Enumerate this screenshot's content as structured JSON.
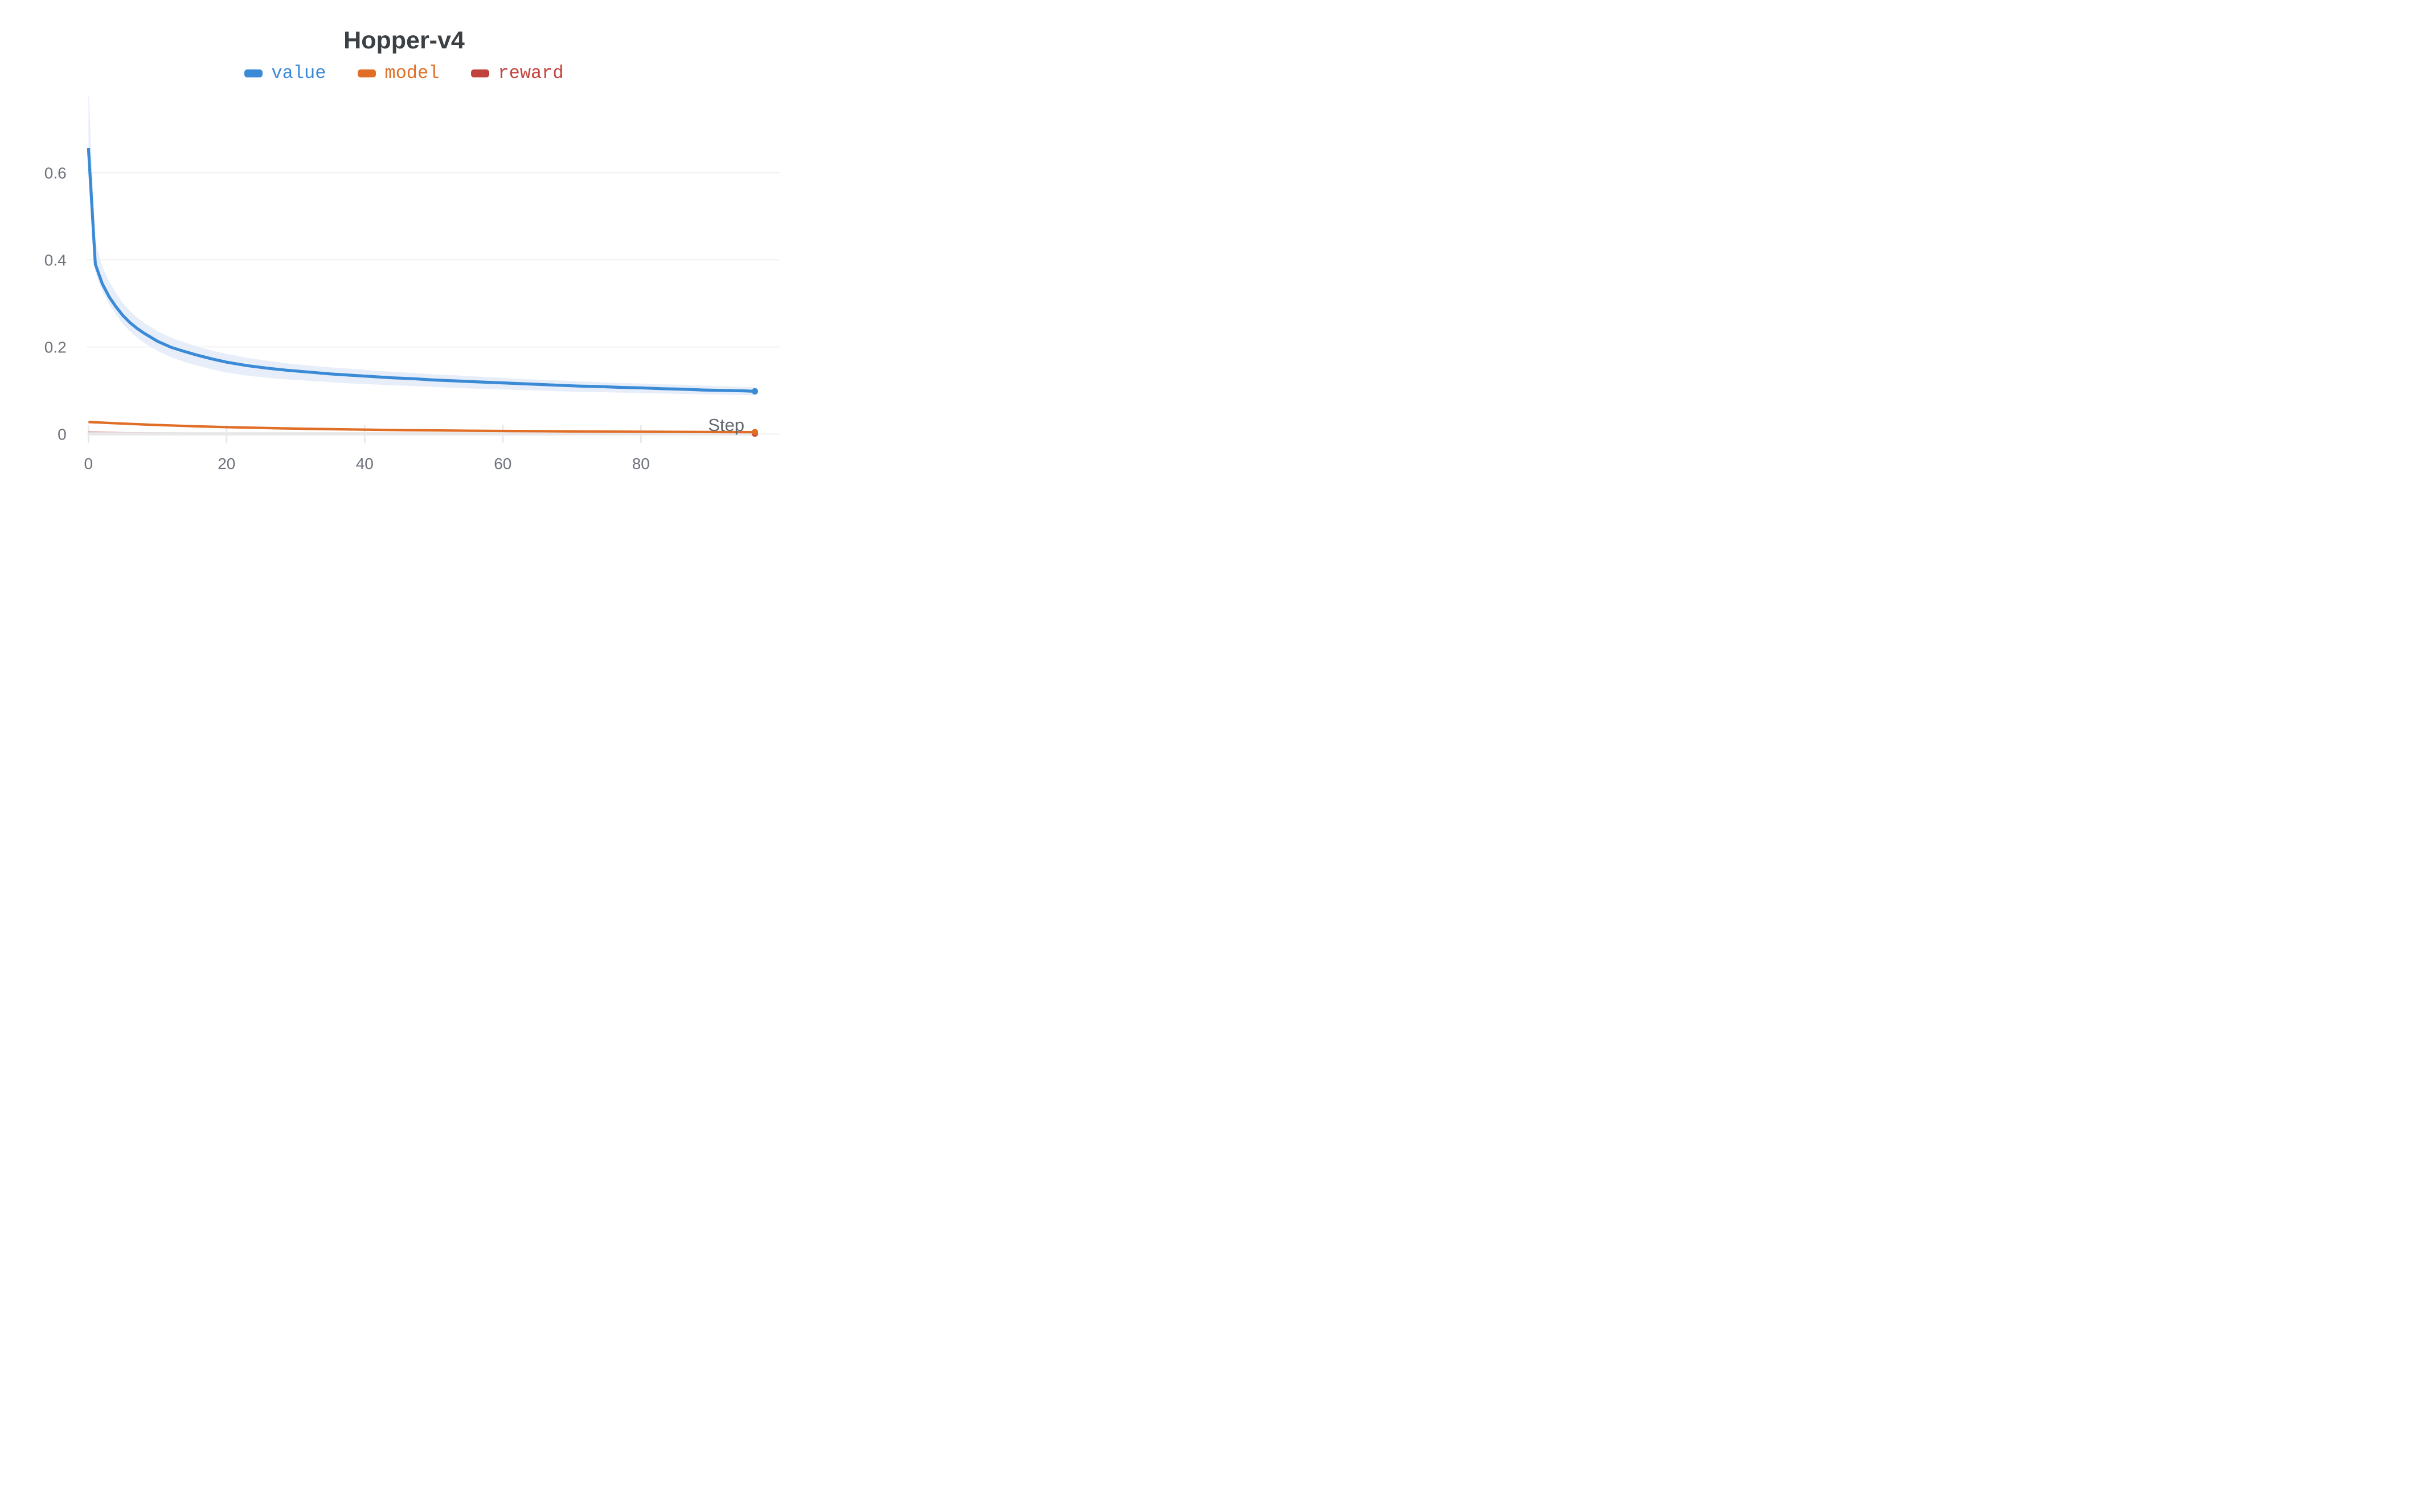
{
  "page": {
    "title": "Hopper-v4"
  },
  "chart_data": {
    "type": "line",
    "title": "Hopper-v4",
    "xlabel": "Step",
    "ylabel": "",
    "x_ticks": [
      0,
      20,
      40,
      60,
      80
    ],
    "y_ticks": [
      0,
      0.2,
      0.4,
      0.6
    ],
    "xlim": [
      -0.3,
      100
    ],
    "ylim": [
      0,
      0.777
    ],
    "grid": "horizontal-only",
    "legend_position": "top-center",
    "background": "#ffffff",
    "grid_color": "#e7e7e9",
    "tick_mark_color": "#e8e8ea",
    "tick_label_color": "#6d717a",
    "title_color": "#3b4045",
    "series": [
      {
        "name": "value",
        "color": "#3a8ad6",
        "band_color": "#e7eefa",
        "has_end_dot": true,
        "x": [
          0,
          1,
          2,
          3,
          4,
          5,
          6,
          7,
          8,
          10,
          12,
          14,
          16,
          18,
          20,
          23,
          26,
          29,
          32,
          35,
          38,
          41,
          44,
          47,
          50,
          53,
          56,
          59,
          62,
          65,
          68,
          71,
          74,
          77,
          80,
          83,
          86,
          89,
          92,
          95,
          96.5
        ],
        "y": [
          0.657,
          0.39,
          0.345,
          0.315,
          0.292,
          0.272,
          0.256,
          0.243,
          0.232,
          0.213,
          0.199,
          0.189,
          0.18,
          0.172,
          0.165,
          0.157,
          0.151,
          0.146,
          0.142,
          0.138,
          0.135,
          0.132,
          0.129,
          0.127,
          0.124,
          0.122,
          0.12,
          0.118,
          0.116,
          0.114,
          0.112,
          0.11,
          0.109,
          0.107,
          0.106,
          0.104,
          0.103,
          0.101,
          0.1,
          0.099,
          0.098
        ],
        "band_upper": [
          0.8,
          0.44,
          0.385,
          0.35,
          0.324,
          0.3,
          0.283,
          0.268,
          0.256,
          0.236,
          0.221,
          0.21,
          0.2,
          0.191,
          0.184,
          0.175,
          0.168,
          0.162,
          0.157,
          0.153,
          0.15,
          0.146,
          0.143,
          0.14,
          0.137,
          0.135,
          0.132,
          0.13,
          0.127,
          0.125,
          0.123,
          0.121,
          0.119,
          0.117,
          0.116,
          0.114,
          0.113,
          0.111,
          0.11,
          0.108,
          0.107
        ],
        "band_lower": [
          0.61,
          0.372,
          0.328,
          0.298,
          0.274,
          0.252,
          0.236,
          0.222,
          0.21,
          0.191,
          0.176,
          0.165,
          0.156,
          0.148,
          0.141,
          0.134,
          0.129,
          0.125,
          0.122,
          0.119,
          0.116,
          0.114,
          0.112,
          0.11,
          0.108,
          0.106,
          0.104,
          0.103,
          0.101,
          0.1,
          0.098,
          0.097,
          0.096,
          0.095,
          0.094,
          0.093,
          0.092,
          0.091,
          0.09,
          0.089,
          0.0885
        ]
      },
      {
        "name": "model",
        "color": "#e06e26",
        "has_end_dot": true,
        "x": [
          0,
          3,
          6,
          9,
          12,
          15,
          18,
          21,
          24,
          27,
          30,
          34,
          38,
          42,
          46,
          50,
          55,
          60,
          65,
          70,
          75,
          80,
          85,
          90,
          96.5
        ],
        "y": [
          0.0275,
          0.0252,
          0.0231,
          0.0212,
          0.0195,
          0.0179,
          0.0165,
          0.0153,
          0.0142,
          0.0132,
          0.0123,
          0.0112,
          0.0103,
          0.0095,
          0.0088,
          0.0082,
          0.0075,
          0.0069,
          0.0064,
          0.0059,
          0.0055,
          0.0051,
          0.0048,
          0.0045,
          0.0042
        ]
      },
      {
        "name": "reward",
        "color": "#c2423c",
        "band_color": "#e8e8ea",
        "band_over_line": true,
        "has_end_dot": true,
        "x": [
          0,
          5,
          10,
          20,
          30,
          40,
          50,
          60,
          70,
          80,
          90,
          96.5
        ],
        "y": [
          0.0042,
          0.0033,
          0.0027,
          0.0021,
          0.0017,
          0.0014,
          0.0012,
          0.001,
          0.0009,
          0.0009,
          0.0008,
          0.0008
        ],
        "band_x": [
          0,
          96.5
        ],
        "band_upper": [
          0.0042,
          0.0042
        ],
        "band_lower": [
          -0.0035,
          -0.0035
        ]
      }
    ]
  }
}
